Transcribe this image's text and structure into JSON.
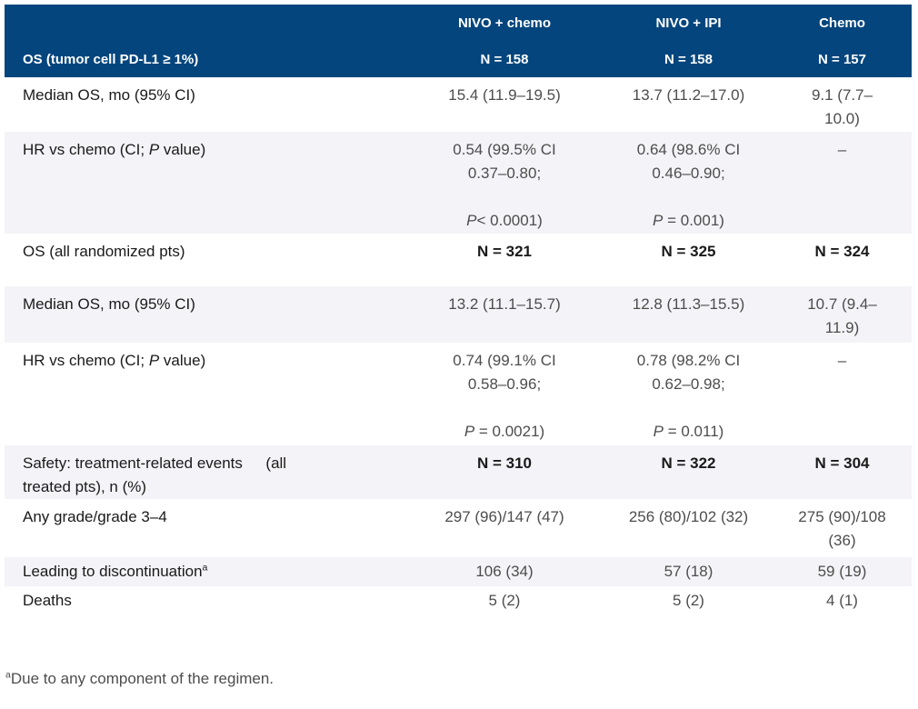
{
  "colors": {
    "header_bg": "#04457d",
    "header_text": "#ffffff",
    "stripe_bg": "#f4f3f7",
    "label_text": "#1a1a1a",
    "value_text": "#4d4d4d"
  },
  "header": {
    "row_label": "OS (tumor cell PD-L1 ≥ 1%)",
    "columns": [
      {
        "name": "NIVO + chemo",
        "n": "N = 158"
      },
      {
        "name": "NIVO + IPI",
        "n": "N = 158"
      },
      {
        "name": "Chemo",
        "n": "N = 157"
      }
    ]
  },
  "rows": {
    "median_pdl1": {
      "label": "Median OS, mo (95% CI)",
      "cells": [
        "15.4 (11.9–19.5)",
        "13.7 (11.2–17.0)",
        "9.1 (7.7–\n10.0)"
      ]
    },
    "hr_pdl1": {
      "label_pre": "HR vs chemo (CI; ",
      "label_p": "P",
      "label_post": " value)",
      "cells": [
        {
          "pre": "0.54 (99.5% CI\n0.37–0.80;\n\n",
          "p": "P",
          "post": "< 0.0001)"
        },
        {
          "pre": "0.64 (98.6% CI\n0.46–0.90;\n\n",
          "p": "P",
          "post": " = 0.001)"
        }
      ],
      "chemo_cell": "–"
    },
    "section_all_randomized": {
      "label": "OS (all randomized pts)",
      "cells": [
        "N = 321",
        "N = 325",
        "N = 324"
      ]
    },
    "median_all": {
      "label": "Median OS, mo (95% CI)",
      "cells": [
        "13.2 (11.1–15.7)",
        "12.8 (11.3–15.5)",
        "10.7 (9.4–\n11.9)"
      ]
    },
    "hr_all": {
      "label_pre": "HR vs chemo (CI; ",
      "label_p": "P",
      "label_post": " value)",
      "cells": [
        {
          "pre": "0.74 (99.1% CI\n0.58–0.96;\n\n",
          "p": "P",
          "post": " = 0.0021)"
        },
        {
          "pre": "0.78 (98.2% CI\n0.62–0.98;\n\n",
          "p": "P",
          "post": " = 0.011)"
        }
      ],
      "chemo_cell": "–"
    },
    "section_safety": {
      "label": "Safety: treatment-related events  (all\ntreated pts), n (%)",
      "cells": [
        "N = 310",
        "N = 322",
        "N = 304"
      ]
    },
    "any_grade": {
      "label": "Any grade/grade 3–4",
      "cells": [
        "297 (96)/147 (47)",
        "256 (80)/102 (32)",
        "275 (90)/108\n(36)"
      ]
    },
    "discontinuation": {
      "label": "Leading to discontinuation",
      "label_sup": "a",
      "cells": [
        "106 (34)",
        "57 (18)",
        "59 (19)"
      ]
    },
    "deaths": {
      "label": "Deaths",
      "cells": [
        "5 (2)",
        "5 (2)",
        "4 (1)"
      ]
    }
  },
  "footnote": {
    "sup": "a",
    "text": "Due to any component of the regimen."
  }
}
